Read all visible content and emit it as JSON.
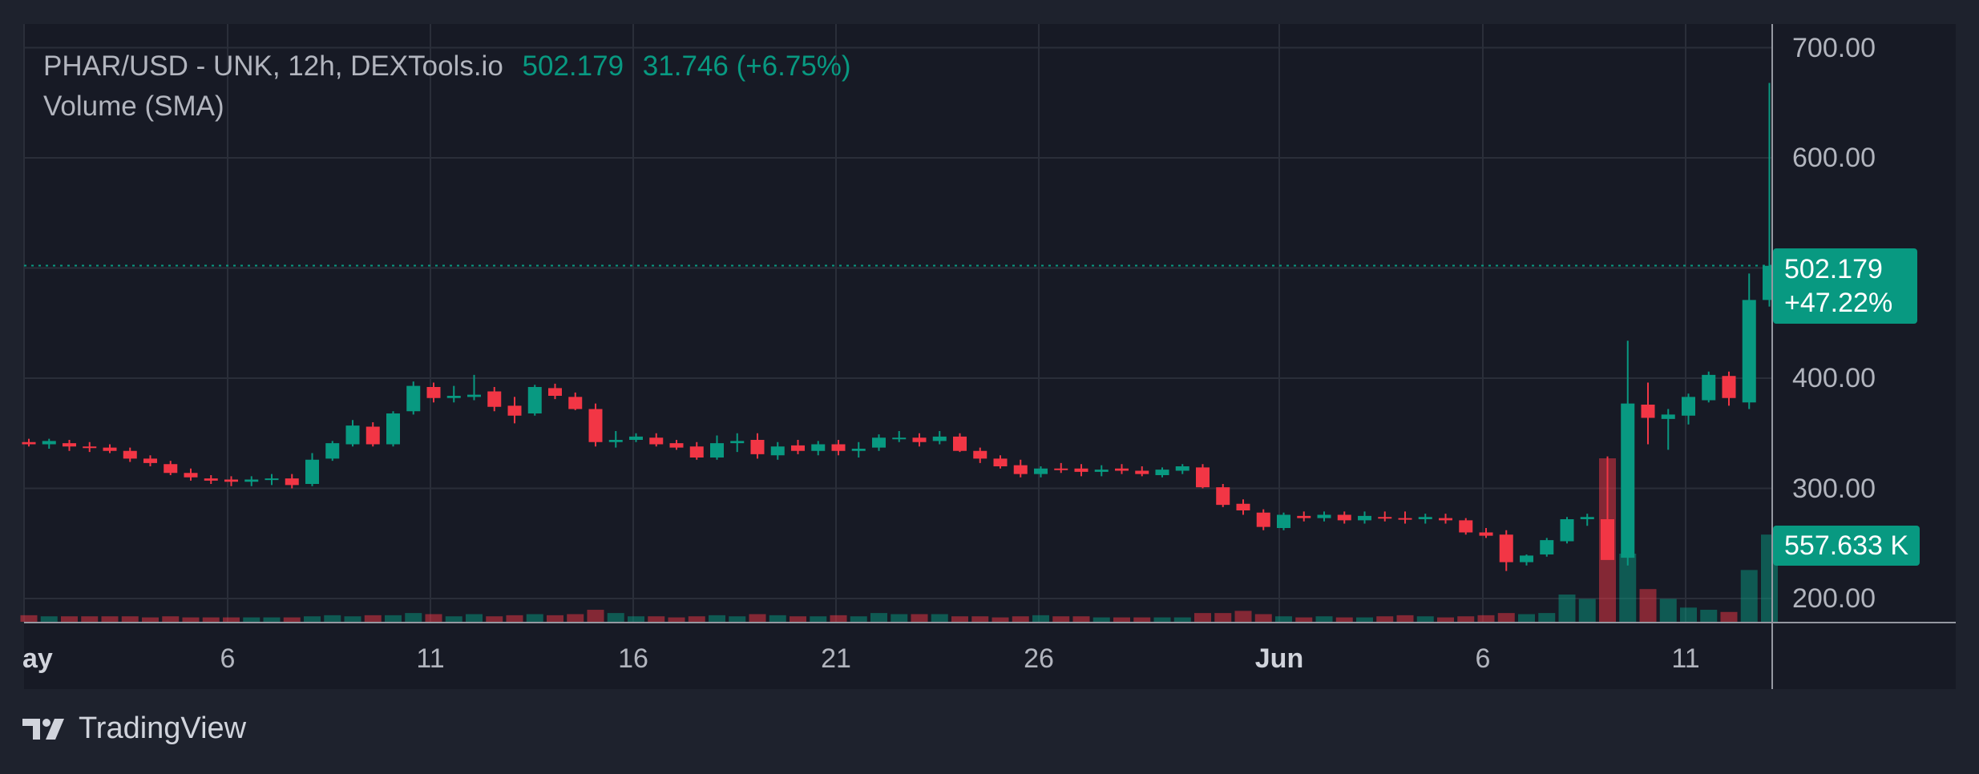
{
  "header": {
    "symbol": "PHAR/USD - UNK, 12h, DEXTools.io",
    "last": "502.179",
    "change": "31.746 (+6.75%)",
    "indicator": "Volume (SMA)"
  },
  "price_badge": {
    "price": "502.179",
    "percent": "+47.22%"
  },
  "volume_badge": {
    "value": "557.633 K"
  },
  "brand": {
    "name": "TradingView"
  },
  "colors": {
    "up": "#089981",
    "down": "#f23645",
    "bg": "#171a25",
    "page_bg": "#1e222d",
    "grid": "#2a2e39",
    "text": "#b2b5be"
  },
  "chart_data": {
    "type": "candlestick",
    "y_axis": {
      "ticks": [
        "700.00",
        "600.00",
        "400.00",
        "300.00",
        "200.00"
      ],
      "ylim": [
        180,
        720
      ]
    },
    "x_axis": {
      "ticks": [
        "ay",
        "6",
        "11",
        "16",
        "21",
        "26",
        "Jun",
        "6",
        "11"
      ]
    },
    "last_price": 502.179,
    "candles": [
      {
        "o": 342,
        "h": 345,
        "l": 338,
        "c": 340
      },
      {
        "o": 340,
        "h": 345,
        "l": 336,
        "c": 343
      },
      {
        "o": 341,
        "h": 344,
        "l": 334,
        "c": 338
      },
      {
        "o": 338,
        "h": 342,
        "l": 333,
        "c": 337
      },
      {
        "o": 337,
        "h": 340,
        "l": 332,
        "c": 334
      },
      {
        "o": 334,
        "h": 337,
        "l": 324,
        "c": 327
      },
      {
        "o": 327,
        "h": 330,
        "l": 320,
        "c": 323
      },
      {
        "o": 322,
        "h": 325,
        "l": 312,
        "c": 314
      },
      {
        "o": 314,
        "h": 318,
        "l": 307,
        "c": 310
      },
      {
        "o": 309,
        "h": 312,
        "l": 304,
        "c": 307
      },
      {
        "o": 308,
        "h": 311,
        "l": 302,
        "c": 306
      },
      {
        "o": 306,
        "h": 311,
        "l": 302,
        "c": 308
      },
      {
        "o": 308,
        "h": 313,
        "l": 303,
        "c": 309
      },
      {
        "o": 309,
        "h": 313,
        "l": 300,
        "c": 303
      },
      {
        "o": 304,
        "h": 332,
        "l": 302,
        "c": 326
      },
      {
        "o": 327,
        "h": 343,
        "l": 325,
        "c": 341
      },
      {
        "o": 340,
        "h": 362,
        "l": 338,
        "c": 357
      },
      {
        "o": 356,
        "h": 360,
        "l": 338,
        "c": 340
      },
      {
        "o": 340,
        "h": 370,
        "l": 338,
        "c": 368
      },
      {
        "o": 370,
        "h": 397,
        "l": 367,
        "c": 393
      },
      {
        "o": 392,
        "h": 396,
        "l": 378,
        "c": 382
      },
      {
        "o": 382,
        "h": 393,
        "l": 378,
        "c": 384
      },
      {
        "o": 383,
        "h": 403,
        "l": 380,
        "c": 385
      },
      {
        "o": 388,
        "h": 392,
        "l": 370,
        "c": 374
      },
      {
        "o": 375,
        "h": 383,
        "l": 359,
        "c": 366
      },
      {
        "o": 368,
        "h": 394,
        "l": 366,
        "c": 392
      },
      {
        "o": 391,
        "h": 395,
        "l": 381,
        "c": 384
      },
      {
        "o": 383,
        "h": 387,
        "l": 371,
        "c": 372
      },
      {
        "o": 372,
        "h": 377,
        "l": 338,
        "c": 342
      },
      {
        "o": 342,
        "h": 352,
        "l": 337,
        "c": 344
      },
      {
        "o": 344,
        "h": 350,
        "l": 342,
        "c": 347
      },
      {
        "o": 346,
        "h": 350,
        "l": 338,
        "c": 340
      },
      {
        "o": 341,
        "h": 344,
        "l": 335,
        "c": 337
      },
      {
        "o": 338,
        "h": 342,
        "l": 326,
        "c": 328
      },
      {
        "o": 328,
        "h": 348,
        "l": 326,
        "c": 341
      },
      {
        "o": 341,
        "h": 350,
        "l": 333,
        "c": 343
      },
      {
        "o": 344,
        "h": 350,
        "l": 327,
        "c": 331
      },
      {
        "o": 330,
        "h": 342,
        "l": 326,
        "c": 338
      },
      {
        "o": 339,
        "h": 344,
        "l": 331,
        "c": 334
      },
      {
        "o": 334,
        "h": 343,
        "l": 330,
        "c": 340
      },
      {
        "o": 340,
        "h": 344,
        "l": 330,
        "c": 334
      },
      {
        "o": 334,
        "h": 342,
        "l": 328,
        "c": 336
      },
      {
        "o": 337,
        "h": 349,
        "l": 334,
        "c": 346
      },
      {
        "o": 345,
        "h": 352,
        "l": 342,
        "c": 346
      },
      {
        "o": 346,
        "h": 350,
        "l": 338,
        "c": 342
      },
      {
        "o": 343,
        "h": 352,
        "l": 340,
        "c": 347
      },
      {
        "o": 347,
        "h": 350,
        "l": 333,
        "c": 334
      },
      {
        "o": 334,
        "h": 337,
        "l": 323,
        "c": 327
      },
      {
        "o": 327,
        "h": 330,
        "l": 318,
        "c": 320
      },
      {
        "o": 321,
        "h": 326,
        "l": 310,
        "c": 313
      },
      {
        "o": 313,
        "h": 320,
        "l": 310,
        "c": 318
      },
      {
        "o": 318,
        "h": 323,
        "l": 314,
        "c": 317
      },
      {
        "o": 318,
        "h": 322,
        "l": 311,
        "c": 315
      },
      {
        "o": 315,
        "h": 321,
        "l": 311,
        "c": 317
      },
      {
        "o": 318,
        "h": 322,
        "l": 313,
        "c": 316
      },
      {
        "o": 316,
        "h": 320,
        "l": 311,
        "c": 313
      },
      {
        "o": 312,
        "h": 319,
        "l": 310,
        "c": 317
      },
      {
        "o": 316,
        "h": 322,
        "l": 313,
        "c": 320
      },
      {
        "o": 319,
        "h": 322,
        "l": 300,
        "c": 301
      },
      {
        "o": 301,
        "h": 304,
        "l": 283,
        "c": 285
      },
      {
        "o": 286,
        "h": 290,
        "l": 276,
        "c": 280
      },
      {
        "o": 278,
        "h": 281,
        "l": 262,
        "c": 265
      },
      {
        "o": 264,
        "h": 278,
        "l": 262,
        "c": 276
      },
      {
        "o": 275,
        "h": 279,
        "l": 270,
        "c": 273
      },
      {
        "o": 273,
        "h": 279,
        "l": 270,
        "c": 276
      },
      {
        "o": 276,
        "h": 279,
        "l": 268,
        "c": 271
      },
      {
        "o": 271,
        "h": 279,
        "l": 268,
        "c": 275
      },
      {
        "o": 274,
        "h": 279,
        "l": 270,
        "c": 273
      },
      {
        "o": 273,
        "h": 279,
        "l": 268,
        "c": 272
      },
      {
        "o": 272,
        "h": 277,
        "l": 268,
        "c": 274
      },
      {
        "o": 273,
        "h": 277,
        "l": 268,
        "c": 271
      },
      {
        "o": 271,
        "h": 273,
        "l": 258,
        "c": 260
      },
      {
        "o": 260,
        "h": 264,
        "l": 255,
        "c": 257
      },
      {
        "o": 258,
        "h": 262,
        "l": 225,
        "c": 233
      },
      {
        "o": 233,
        "h": 240,
        "l": 230,
        "c": 239
      },
      {
        "o": 240,
        "h": 255,
        "l": 238,
        "c": 253
      },
      {
        "o": 252,
        "h": 274,
        "l": 250,
        "c": 272
      },
      {
        "o": 272,
        "h": 277,
        "l": 266,
        "c": 274
      },
      {
        "o": 272,
        "h": 329,
        "l": 240,
        "c": 235
      },
      {
        "o": 237,
        "h": 434,
        "l": 230,
        "c": 377
      },
      {
        "o": 376,
        "h": 396,
        "l": 340,
        "c": 364
      },
      {
        "o": 363,
        "h": 372,
        "l": 335,
        "c": 367
      },
      {
        "o": 366,
        "h": 386,
        "l": 358,
        "c": 383
      },
      {
        "o": 380,
        "h": 406,
        "l": 378,
        "c": 403
      },
      {
        "o": 402,
        "h": 406,
        "l": 375,
        "c": 382
      },
      {
        "o": 378,
        "h": 495,
        "l": 372,
        "c": 471
      },
      {
        "o": 471,
        "h": 668,
        "l": 465,
        "c": 502
      }
    ],
    "volume": [
      0.012,
      0.01,
      0.01,
      0.01,
      0.01,
      0.01,
      0.008,
      0.01,
      0.008,
      0.008,
      0.008,
      0.008,
      0.008,
      0.008,
      0.01,
      0.012,
      0.01,
      0.012,
      0.012,
      0.016,
      0.014,
      0.01,
      0.014,
      0.01,
      0.012,
      0.014,
      0.012,
      0.014,
      0.022,
      0.016,
      0.01,
      0.01,
      0.008,
      0.01,
      0.012,
      0.01,
      0.014,
      0.012,
      0.01,
      0.01,
      0.012,
      0.01,
      0.016,
      0.014,
      0.014,
      0.014,
      0.01,
      0.01,
      0.008,
      0.01,
      0.012,
      0.01,
      0.01,
      0.008,
      0.008,
      0.008,
      0.008,
      0.008,
      0.016,
      0.016,
      0.02,
      0.014,
      0.01,
      0.008,
      0.01,
      0.008,
      0.008,
      0.01,
      0.012,
      0.01,
      0.008,
      0.01,
      0.012,
      0.016,
      0.014,
      0.016,
      0.05,
      0.042,
      0.3,
      0.125,
      0.06,
      0.042,
      0.026,
      0.022,
      0.018,
      0.095,
      0.16
    ]
  }
}
